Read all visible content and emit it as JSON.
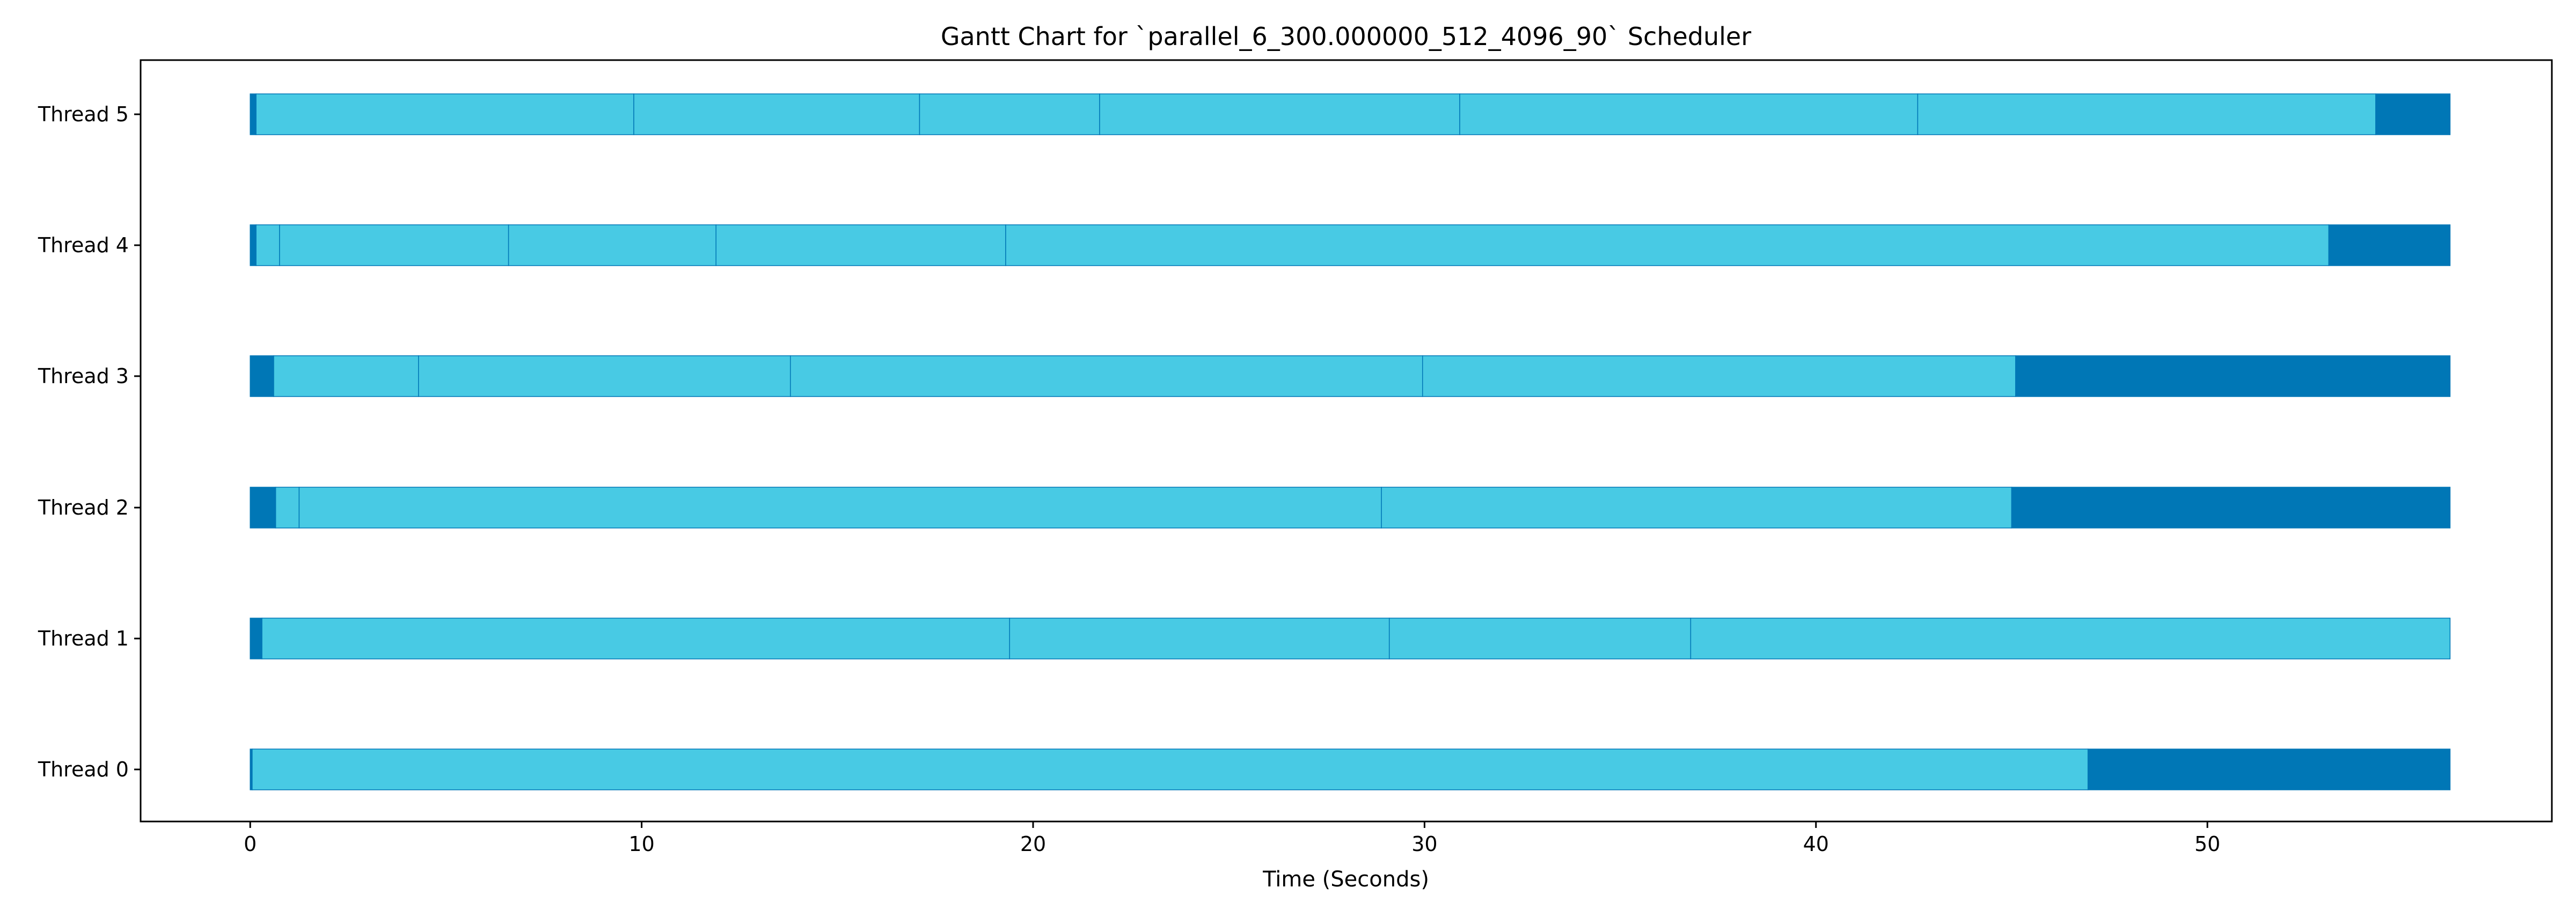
{
  "chart_data": {
    "type": "gantt",
    "title": "Gantt Chart for `parallel_6_300.000000_512_4096_90` Scheduler",
    "xlabel": "Time (Seconds)",
    "ylabel": "",
    "xlim": [
      -2.8,
      58.8
    ],
    "xticks": [
      0,
      10,
      20,
      30,
      40,
      50
    ],
    "grid": false,
    "colors": {
      "idle": "#0077b6",
      "busy": "#48cae4",
      "edge": "#0077b6"
    },
    "threads": [
      {
        "name": "Thread 0",
        "segments": [
          {
            "start": 0.0,
            "end": 0.05,
            "state": "idle"
          },
          {
            "start": 0.05,
            "end": 46.95,
            "state": "busy"
          },
          {
            "start": 46.95,
            "end": 56.2,
            "state": "idle"
          }
        ]
      },
      {
        "name": "Thread 1",
        "segments": [
          {
            "start": 0.0,
            "end": 0.3,
            "state": "idle"
          },
          {
            "start": 0.3,
            "end": 19.4,
            "state": "busy"
          },
          {
            "start": 19.4,
            "end": 29.1,
            "state": "busy"
          },
          {
            "start": 29.1,
            "end": 36.8,
            "state": "busy"
          },
          {
            "start": 36.8,
            "end": 56.2,
            "state": "busy"
          }
        ]
      },
      {
        "name": "Thread 2",
        "segments": [
          {
            "start": 0.0,
            "end": 0.65,
            "state": "idle"
          },
          {
            "start": 0.65,
            "end": 1.25,
            "state": "busy"
          },
          {
            "start": 1.25,
            "end": 28.9,
            "state": "busy"
          },
          {
            "start": 28.9,
            "end": 45.0,
            "state": "busy"
          },
          {
            "start": 45.0,
            "end": 56.2,
            "state": "idle"
          }
        ]
      },
      {
        "name": "Thread 3",
        "segments": [
          {
            "start": 0.0,
            "end": 0.6,
            "state": "idle"
          },
          {
            "start": 0.6,
            "end": 4.3,
            "state": "busy"
          },
          {
            "start": 4.3,
            "end": 13.8,
            "state": "busy"
          },
          {
            "start": 13.8,
            "end": 29.95,
            "state": "busy"
          },
          {
            "start": 29.95,
            "end": 45.1,
            "state": "busy"
          },
          {
            "start": 45.1,
            "end": 56.2,
            "state": "idle"
          }
        ]
      },
      {
        "name": "Thread 4",
        "segments": [
          {
            "start": 0.0,
            "end": 0.15,
            "state": "idle"
          },
          {
            "start": 0.15,
            "end": 0.75,
            "state": "busy"
          },
          {
            "start": 0.75,
            "end": 6.6,
            "state": "busy"
          },
          {
            "start": 6.6,
            "end": 11.9,
            "state": "busy"
          },
          {
            "start": 11.9,
            "end": 19.3,
            "state": "busy"
          },
          {
            "start": 19.3,
            "end": 53.1,
            "state": "busy"
          },
          {
            "start": 53.1,
            "end": 56.2,
            "state": "idle"
          }
        ]
      },
      {
        "name": "Thread 5",
        "segments": [
          {
            "start": 0.0,
            "end": 0.15,
            "state": "idle"
          },
          {
            "start": 0.15,
            "end": 9.8,
            "state": "busy"
          },
          {
            "start": 9.8,
            "end": 17.1,
            "state": "busy"
          },
          {
            "start": 17.1,
            "end": 21.7,
            "state": "busy"
          },
          {
            "start": 21.7,
            "end": 30.9,
            "state": "busy"
          },
          {
            "start": 30.9,
            "end": 42.6,
            "state": "busy"
          },
          {
            "start": 42.6,
            "end": 54.3,
            "state": "busy"
          },
          {
            "start": 54.3,
            "end": 56.2,
            "state": "idle"
          }
        ]
      }
    ]
  }
}
